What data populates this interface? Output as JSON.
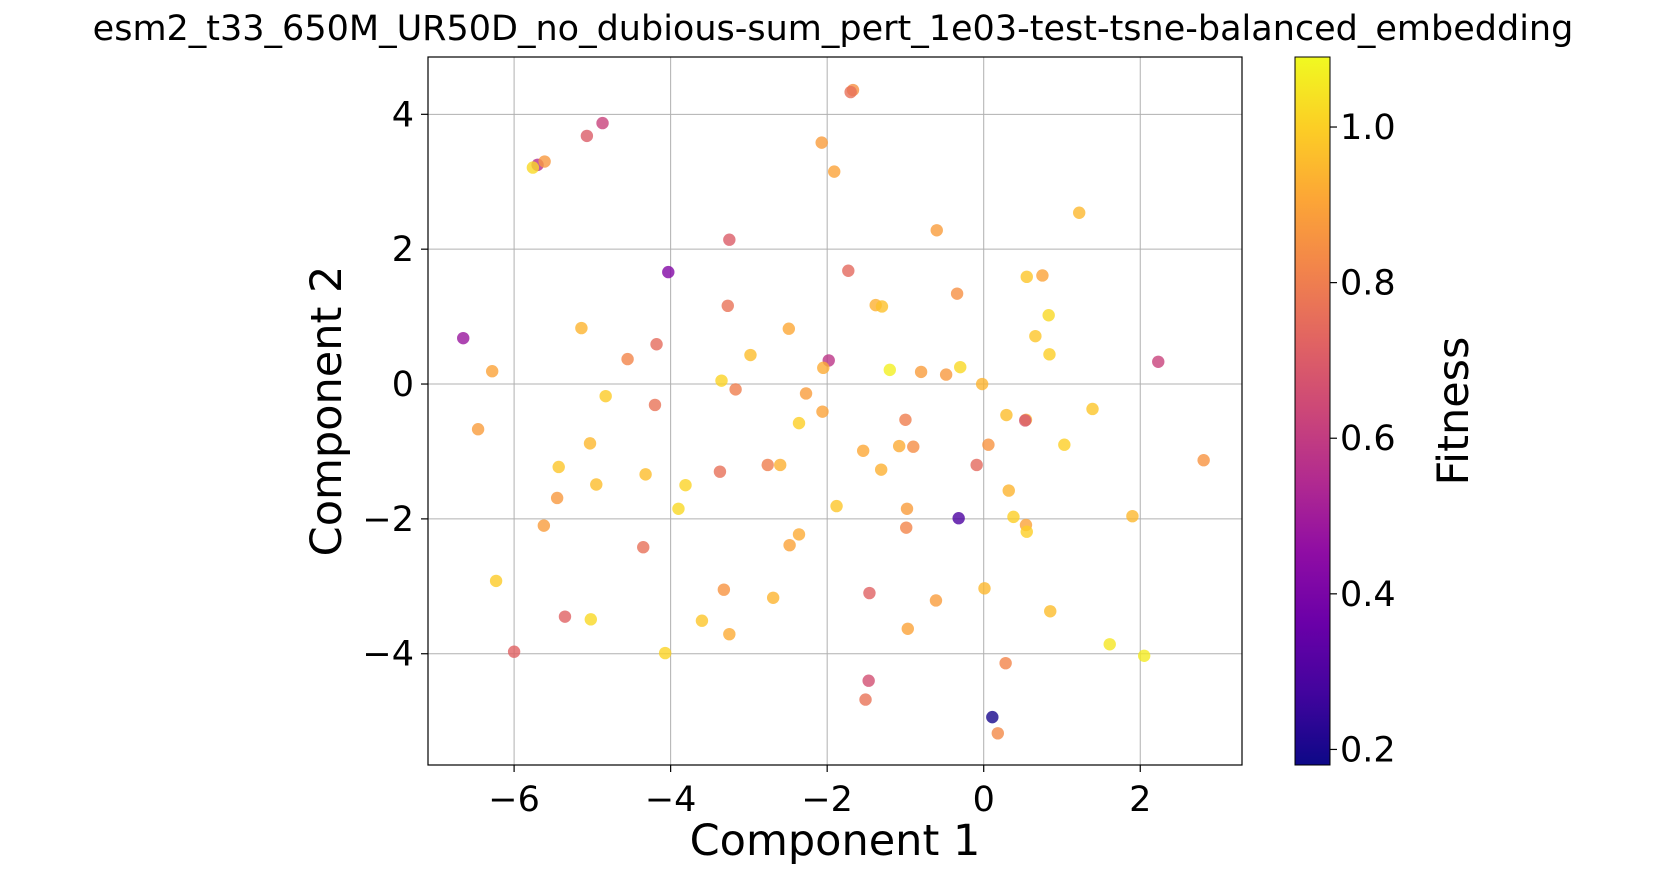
{
  "chart_data": {
    "type": "scatter",
    "title": "esm2_t33_650M_UR50D_no_dubious-sum_pert_1e03-test-tsne-balanced_embedding",
    "xlabel": "Component 1",
    "ylabel": "Component 2",
    "xlim": [
      -7.1,
      3.3
    ],
    "ylim": [
      -5.65,
      4.85
    ],
    "xticks": [
      -6,
      -4,
      -2,
      0,
      2
    ],
    "yticks": [
      -4,
      -2,
      0,
      2,
      4
    ],
    "xtick_labels": [
      "−6",
      "−4",
      "−2",
      "0",
      "2"
    ],
    "ytick_labels": [
      "−4",
      "−2",
      "0",
      "2",
      "4"
    ],
    "grid": true,
    "colormap": "plasma",
    "colorbar": {
      "label": "Fitness",
      "range": [
        0.18,
        1.09
      ],
      "ticks": [
        0.2,
        0.4,
        0.6,
        0.8,
        1.0
      ],
      "tick_labels": [
        "0.2",
        "0.4",
        "0.6",
        "0.8",
        "1.0"
      ]
    },
    "points": [
      {
        "x": -1.67,
        "y": 4.36,
        "c": 0.85
      },
      {
        "x": -1.7,
        "y": 4.33,
        "c": 0.76
      },
      {
        "x": -5.07,
        "y": 3.68,
        "c": 0.7
      },
      {
        "x": -4.87,
        "y": 3.87,
        "c": 0.62
      },
      {
        "x": -5.7,
        "y": 3.25,
        "c": 0.56
      },
      {
        "x": -5.61,
        "y": 3.3,
        "c": 0.87
      },
      {
        "x": -5.76,
        "y": 3.21,
        "c": 1.02
      },
      {
        "x": -2.07,
        "y": 3.58,
        "c": 0.88
      },
      {
        "x": -1.91,
        "y": 3.15,
        "c": 0.9
      },
      {
        "x": -3.25,
        "y": 2.14,
        "c": 0.7
      },
      {
        "x": -0.6,
        "y": 2.28,
        "c": 0.88
      },
      {
        "x": 1.22,
        "y": 2.54,
        "c": 0.95
      },
      {
        "x": -4.03,
        "y": 1.66,
        "c": 0.42
      },
      {
        "x": -1.73,
        "y": 1.68,
        "c": 0.74
      },
      {
        "x": -0.34,
        "y": 1.34,
        "c": 0.85
      },
      {
        "x": 0.55,
        "y": 1.59,
        "c": 0.98
      },
      {
        "x": 0.75,
        "y": 1.61,
        "c": 0.9
      },
      {
        "x": -6.65,
        "y": 0.68,
        "c": 0.48
      },
      {
        "x": -5.14,
        "y": 0.83,
        "c": 0.94
      },
      {
        "x": -3.27,
        "y": 1.16,
        "c": 0.77
      },
      {
        "x": -2.49,
        "y": 0.82,
        "c": 0.91
      },
      {
        "x": -1.38,
        "y": 1.17,
        "c": 0.93
      },
      {
        "x": -1.3,
        "y": 1.15,
        "c": 0.97
      },
      {
        "x": 0.83,
        "y": 1.02,
        "c": 1.02
      },
      {
        "x": 0.66,
        "y": 0.71,
        "c": 0.98
      },
      {
        "x": -6.28,
        "y": 0.19,
        "c": 0.9
      },
      {
        "x": -4.55,
        "y": 0.37,
        "c": 0.82
      },
      {
        "x": -4.18,
        "y": 0.59,
        "c": 0.75
      },
      {
        "x": -2.98,
        "y": 0.43,
        "c": 0.96
      },
      {
        "x": -1.98,
        "y": 0.35,
        "c": 0.58
      },
      {
        "x": -2.05,
        "y": 0.24,
        "c": 0.92
      },
      {
        "x": -1.2,
        "y": 0.21,
        "c": 1.07
      },
      {
        "x": -0.8,
        "y": 0.18,
        "c": 0.88
      },
      {
        "x": -0.3,
        "y": 0.25,
        "c": 1.02
      },
      {
        "x": -0.48,
        "y": 0.14,
        "c": 0.87
      },
      {
        "x": 0.84,
        "y": 0.44,
        "c": 1.0
      },
      {
        "x": 2.23,
        "y": 0.33,
        "c": 0.62
      },
      {
        "x": -6.46,
        "y": -0.67,
        "c": 0.88
      },
      {
        "x": -4.83,
        "y": -0.18,
        "c": 0.99
      },
      {
        "x": -4.2,
        "y": -0.31,
        "c": 0.77
      },
      {
        "x": -3.35,
        "y": 0.05,
        "c": 1.01
      },
      {
        "x": -3.17,
        "y": -0.08,
        "c": 0.8
      },
      {
        "x": -2.27,
        "y": -0.14,
        "c": 0.88
      },
      {
        "x": -2.06,
        "y": -0.41,
        "c": 0.9
      },
      {
        "x": -0.02,
        "y": 0.0,
        "c": 0.94
      },
      {
        "x": 0.29,
        "y": -0.46,
        "c": 0.96
      },
      {
        "x": 0.54,
        "y": -0.53,
        "c": 0.93
      },
      {
        "x": 0.53,
        "y": -0.54,
        "c": 0.68
      },
      {
        "x": 1.39,
        "y": -0.37,
        "c": 0.98
      },
      {
        "x": -5.03,
        "y": -0.88,
        "c": 0.95
      },
      {
        "x": -2.36,
        "y": -0.58,
        "c": 1.0
      },
      {
        "x": -1.54,
        "y": -0.99,
        "c": 0.91
      },
      {
        "x": -1.08,
        "y": -0.92,
        "c": 0.92
      },
      {
        "x": -0.9,
        "y": -0.93,
        "c": 0.84
      },
      {
        "x": -1.0,
        "y": -0.53,
        "c": 0.8
      },
      {
        "x": 0.06,
        "y": -0.9,
        "c": 0.86
      },
      {
        "x": 1.03,
        "y": -0.9,
        "c": 1.0
      },
      {
        "x": -5.43,
        "y": -1.23,
        "c": 0.98
      },
      {
        "x": -4.32,
        "y": -1.34,
        "c": 0.96
      },
      {
        "x": -3.37,
        "y": -1.3,
        "c": 0.76
      },
      {
        "x": -2.76,
        "y": -1.2,
        "c": 0.8
      },
      {
        "x": -2.6,
        "y": -1.2,
        "c": 0.93
      },
      {
        "x": -1.31,
        "y": -1.27,
        "c": 0.93
      },
      {
        "x": -0.09,
        "y": -1.2,
        "c": 0.74
      },
      {
        "x": -4.95,
        "y": -1.49,
        "c": 0.96
      },
      {
        "x": -3.81,
        "y": -1.5,
        "c": 1.01
      },
      {
        "x": -5.45,
        "y": -1.69,
        "c": 0.87
      },
      {
        "x": -3.9,
        "y": -1.85,
        "c": 1.02
      },
      {
        "x": -1.88,
        "y": -1.81,
        "c": 0.98
      },
      {
        "x": -0.98,
        "y": -1.85,
        "c": 0.88
      },
      {
        "x": 0.32,
        "y": -1.58,
        "c": 0.94
      },
      {
        "x": -5.62,
        "y": -2.1,
        "c": 0.88
      },
      {
        "x": -0.99,
        "y": -2.13,
        "c": 0.82
      },
      {
        "x": -0.32,
        "y": -1.99,
        "c": 0.3
      },
      {
        "x": 0.38,
        "y": -1.97,
        "c": 1.0
      },
      {
        "x": 0.54,
        "y": -2.09,
        "c": 0.9
      },
      {
        "x": 0.55,
        "y": -2.19,
        "c": 1.0
      },
      {
        "x": 1.9,
        "y": -1.96,
        "c": 0.95
      },
      {
        "x": -4.35,
        "y": -2.42,
        "c": 0.76
      },
      {
        "x": -2.48,
        "y": -2.39,
        "c": 0.9
      },
      {
        "x": -2.36,
        "y": -2.23,
        "c": 0.92
      },
      {
        "x": -6.23,
        "y": -2.92,
        "c": 0.99
      },
      {
        "x": -3.32,
        "y": -3.05,
        "c": 0.86
      },
      {
        "x": -2.69,
        "y": -3.17,
        "c": 0.94
      },
      {
        "x": -1.46,
        "y": -3.1,
        "c": 0.72
      },
      {
        "x": -0.61,
        "y": -3.21,
        "c": 0.88
      },
      {
        "x": 0.01,
        "y": -3.03,
        "c": 0.95
      },
      {
        "x": 0.85,
        "y": -3.37,
        "c": 0.96
      },
      {
        "x": -5.35,
        "y": -3.45,
        "c": 0.72
      },
      {
        "x": -5.02,
        "y": -3.49,
        "c": 1.02
      },
      {
        "x": -3.6,
        "y": -3.51,
        "c": 0.98
      },
      {
        "x": -3.25,
        "y": -3.71,
        "c": 0.92
      },
      {
        "x": -0.97,
        "y": -3.63,
        "c": 0.9
      },
      {
        "x": -6.0,
        "y": -3.97,
        "c": 0.72
      },
      {
        "x": -4.07,
        "y": -3.99,
        "c": 1.01
      },
      {
        "x": 1.61,
        "y": -3.86,
        "c": 1.05
      },
      {
        "x": 2.05,
        "y": -4.03,
        "c": 1.06
      },
      {
        "x": 0.28,
        "y": -4.14,
        "c": 0.82
      },
      {
        "x": -1.47,
        "y": -4.4,
        "c": 0.66
      },
      {
        "x": -1.51,
        "y": -4.68,
        "c": 0.77
      },
      {
        "x": 0.11,
        "y": -4.94,
        "c": 0.2
      },
      {
        "x": 0.18,
        "y": -5.18,
        "c": 0.83
      },
      {
        "x": 2.81,
        "y": -1.13,
        "c": 0.86
      }
    ]
  }
}
